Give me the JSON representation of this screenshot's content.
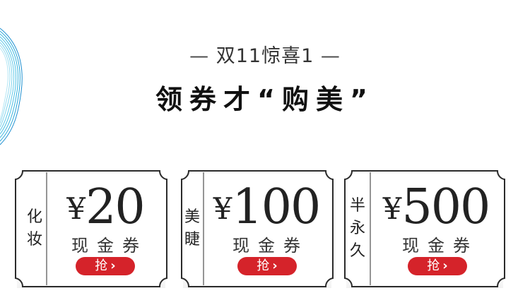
{
  "header": {
    "dash_left": "—",
    "subtitle": "双11惊喜1",
    "dash_right": "—",
    "title": "领券才“购美”"
  },
  "coupons": [
    {
      "tag": [
        "化",
        "妆"
      ],
      "currency": "¥",
      "amount": "20",
      "label": "现金券",
      "button": "抢"
    },
    {
      "tag": [
        "美",
        "睫"
      ],
      "currency": "¥",
      "amount": "100",
      "label": "现金券",
      "button": "抢"
    },
    {
      "tag": [
        "半",
        "永",
        "久"
      ],
      "currency": "¥",
      "amount": "500",
      "label": "现金券",
      "button": "抢"
    }
  ],
  "colors": {
    "accent": "#d5232a",
    "ticket_border": "#2b2b2b",
    "deco": "#2aa7d8"
  },
  "icons": {
    "button_arrow": "chevron-right-icon",
    "deco": "wave-lines-decoration"
  }
}
